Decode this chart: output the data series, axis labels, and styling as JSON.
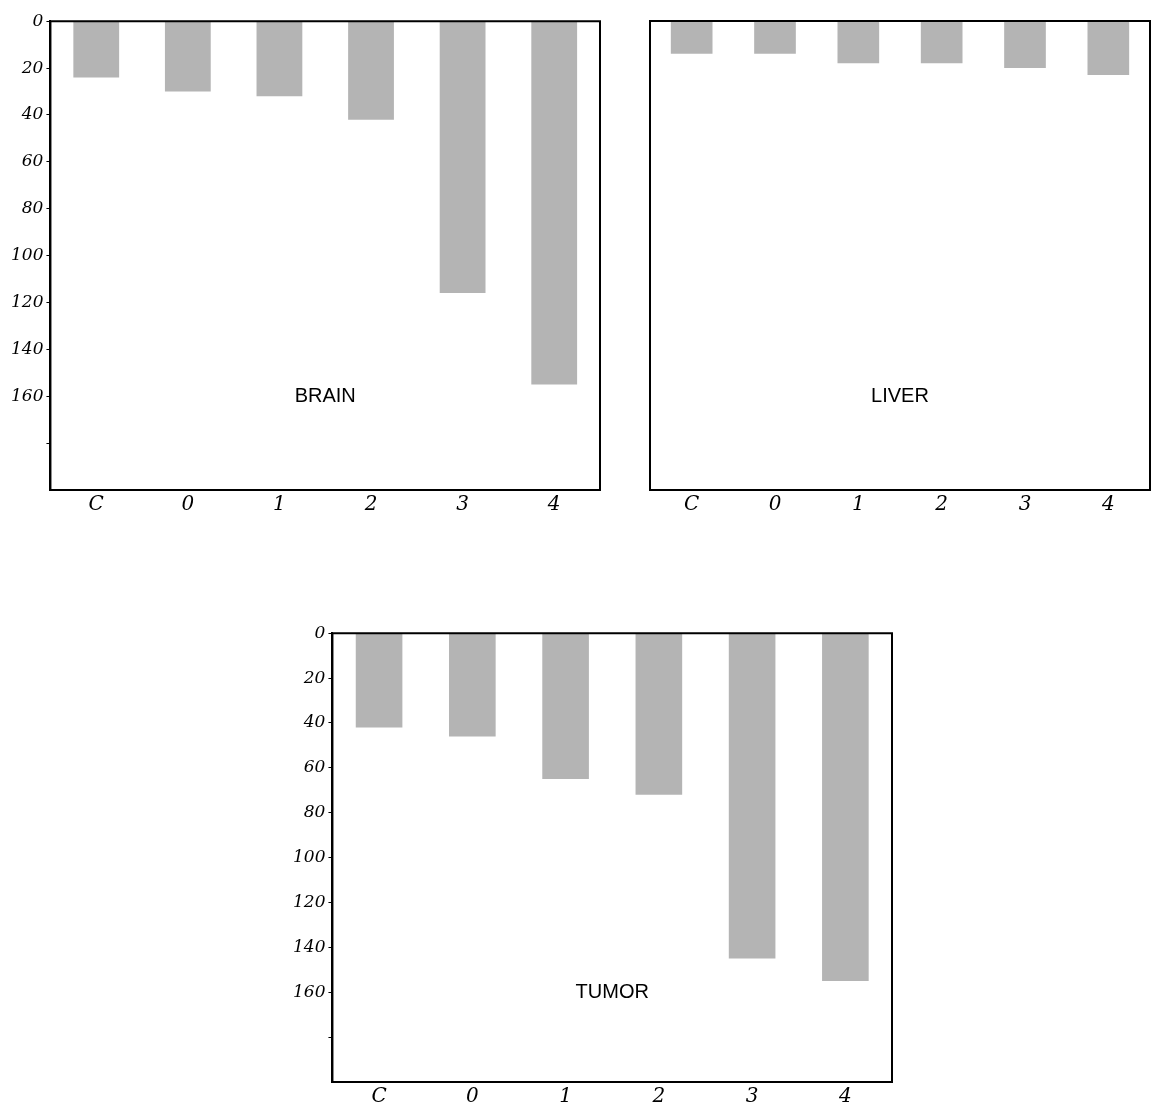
{
  "chart_data": [
    {
      "type": "bar",
      "title": "BRAIN",
      "categories": [
        "C",
        "0",
        "1",
        "2",
        "3",
        "4"
      ],
      "values": [
        24,
        30,
        32,
        42,
        116,
        155
      ],
      "color": "#b4b4b4",
      "ylim": [
        200,
        0
      ],
      "yticks": [
        0,
        20,
        40,
        60,
        80,
        100,
        120,
        140,
        160,
        {
          "value": 180,
          "label": null
        }
      ],
      "grid": false
    },
    {
      "type": "bar",
      "title": "LIVER",
      "categories": [
        "C",
        "0",
        "1",
        "2",
        "3",
        "4"
      ],
      "values": [
        14,
        14,
        18,
        18,
        20,
        23
      ],
      "color": "#b4b4b4",
      "ylim": [
        200,
        0
      ],
      "grid": false,
      "tick_labels": "x"
    },
    {
      "type": "bar",
      "title": "TUMOR",
      "categories": [
        "C",
        "0",
        "1",
        "2",
        "3",
        "4"
      ],
      "values": [
        42,
        46,
        65,
        72,
        145,
        155
      ],
      "color": "#b4b4b4",
      "ylim": [
        200,
        0
      ],
      "yticks": [
        0,
        20,
        40,
        60,
        80,
        100,
        120,
        140,
        160,
        {
          "value": 180,
          "label": null
        }
      ],
      "grid": false
    }
  ]
}
